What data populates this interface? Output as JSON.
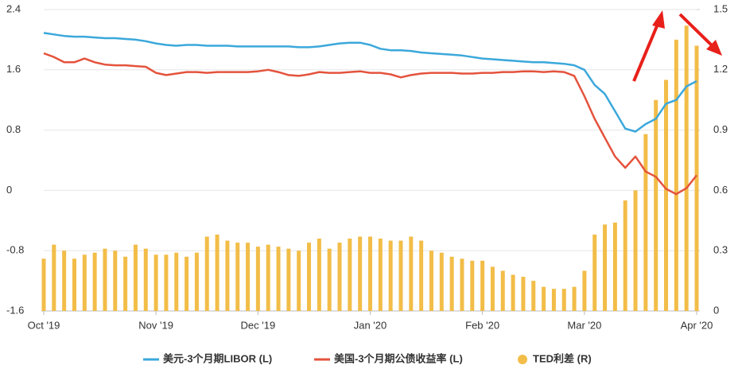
{
  "chart_data": {
    "type": "combo",
    "categories": [
      "Oct '19",
      null,
      null,
      null,
      null,
      null,
      null,
      null,
      null,
      null,
      null,
      "Nov '19",
      null,
      null,
      null,
      null,
      null,
      null,
      null,
      null,
      null,
      "Dec '19",
      null,
      null,
      null,
      null,
      null,
      null,
      null,
      null,
      null,
      null,
      "Jan '20",
      null,
      null,
      null,
      null,
      null,
      null,
      null,
      null,
      null,
      null,
      "Feb '20",
      null,
      null,
      null,
      null,
      null,
      null,
      null,
      null,
      null,
      "Mar '20",
      null,
      null,
      null,
      null,
      null,
      null,
      null,
      null,
      null,
      null,
      "Apr '20"
    ],
    "series": [
      {
        "name": "TED利差 (R)",
        "type": "bar",
        "axis": "y2",
        "color": "#f2bd48",
        "values": [
          0.26,
          0.33,
          0.3,
          0.26,
          0.28,
          0.29,
          0.31,
          0.3,
          0.27,
          0.33,
          0.31,
          0.28,
          0.28,
          0.29,
          0.27,
          0.29,
          0.37,
          0.38,
          0.35,
          0.34,
          0.34,
          0.32,
          0.33,
          0.32,
          0.31,
          0.3,
          0.34,
          0.36,
          0.31,
          0.34,
          0.36,
          0.37,
          0.37,
          0.36,
          0.35,
          0.35,
          0.37,
          0.35,
          0.3,
          0.29,
          0.27,
          0.26,
          0.25,
          0.25,
          0.22,
          0.2,
          0.18,
          0.17,
          0.15,
          0.12,
          0.11,
          0.11,
          0.12,
          0.2,
          0.38,
          0.43,
          0.44,
          0.55,
          0.6,
          0.88,
          1.05,
          1.15,
          1.35,
          1.42,
          1.32
        ]
      },
      {
        "name": "美元-3个月期LIBOR (L)",
        "type": "line",
        "axis": "y",
        "color": "#3ba8db",
        "values": [
          2.09,
          2.07,
          2.05,
          2.04,
          2.04,
          2.03,
          2.02,
          2.02,
          2.01,
          2.0,
          1.98,
          1.95,
          1.93,
          1.92,
          1.93,
          1.93,
          1.92,
          1.92,
          1.92,
          1.91,
          1.91,
          1.91,
          1.91,
          1.91,
          1.91,
          1.9,
          1.9,
          1.91,
          1.93,
          1.95,
          1.96,
          1.96,
          1.93,
          1.88,
          1.86,
          1.86,
          1.85,
          1.83,
          1.82,
          1.81,
          1.8,
          1.79,
          1.77,
          1.75,
          1.74,
          1.73,
          1.72,
          1.71,
          1.7,
          1.7,
          1.69,
          1.68,
          1.66,
          1.6,
          1.4,
          1.28,
          1.05,
          0.82,
          0.78,
          0.88,
          0.95,
          1.15,
          1.2,
          1.38,
          1.45
        ]
      },
      {
        "name": "美国-3个月期公债收益率 (L)",
        "type": "line",
        "axis": "y",
        "color": "#e4533d",
        "values": [
          1.82,
          1.77,
          1.7,
          1.7,
          1.75,
          1.7,
          1.67,
          1.66,
          1.66,
          1.65,
          1.64,
          1.56,
          1.53,
          1.55,
          1.57,
          1.57,
          1.56,
          1.57,
          1.57,
          1.57,
          1.57,
          1.58,
          1.6,
          1.57,
          1.53,
          1.52,
          1.54,
          1.57,
          1.56,
          1.56,
          1.57,
          1.58,
          1.56,
          1.56,
          1.54,
          1.5,
          1.53,
          1.55,
          1.56,
          1.56,
          1.56,
          1.55,
          1.55,
          1.56,
          1.56,
          1.57,
          1.57,
          1.58,
          1.58,
          1.57,
          1.58,
          1.57,
          1.52,
          1.25,
          0.95,
          0.7,
          0.45,
          0.3,
          0.45,
          0.25,
          0.18,
          0.02,
          -0.05,
          0.03,
          0.2
        ]
      }
    ],
    "ylim": [
      -1.6,
      2.4
    ],
    "yticks": [
      -1.6,
      -0.8,
      0,
      0.8,
      1.6,
      2.4
    ],
    "y2lim": [
      0,
      1.5
    ],
    "y2ticks": [
      0,
      0.3,
      0.6,
      0.9,
      1.2,
      1.5
    ],
    "grid": true,
    "legend": "bottom"
  }
}
